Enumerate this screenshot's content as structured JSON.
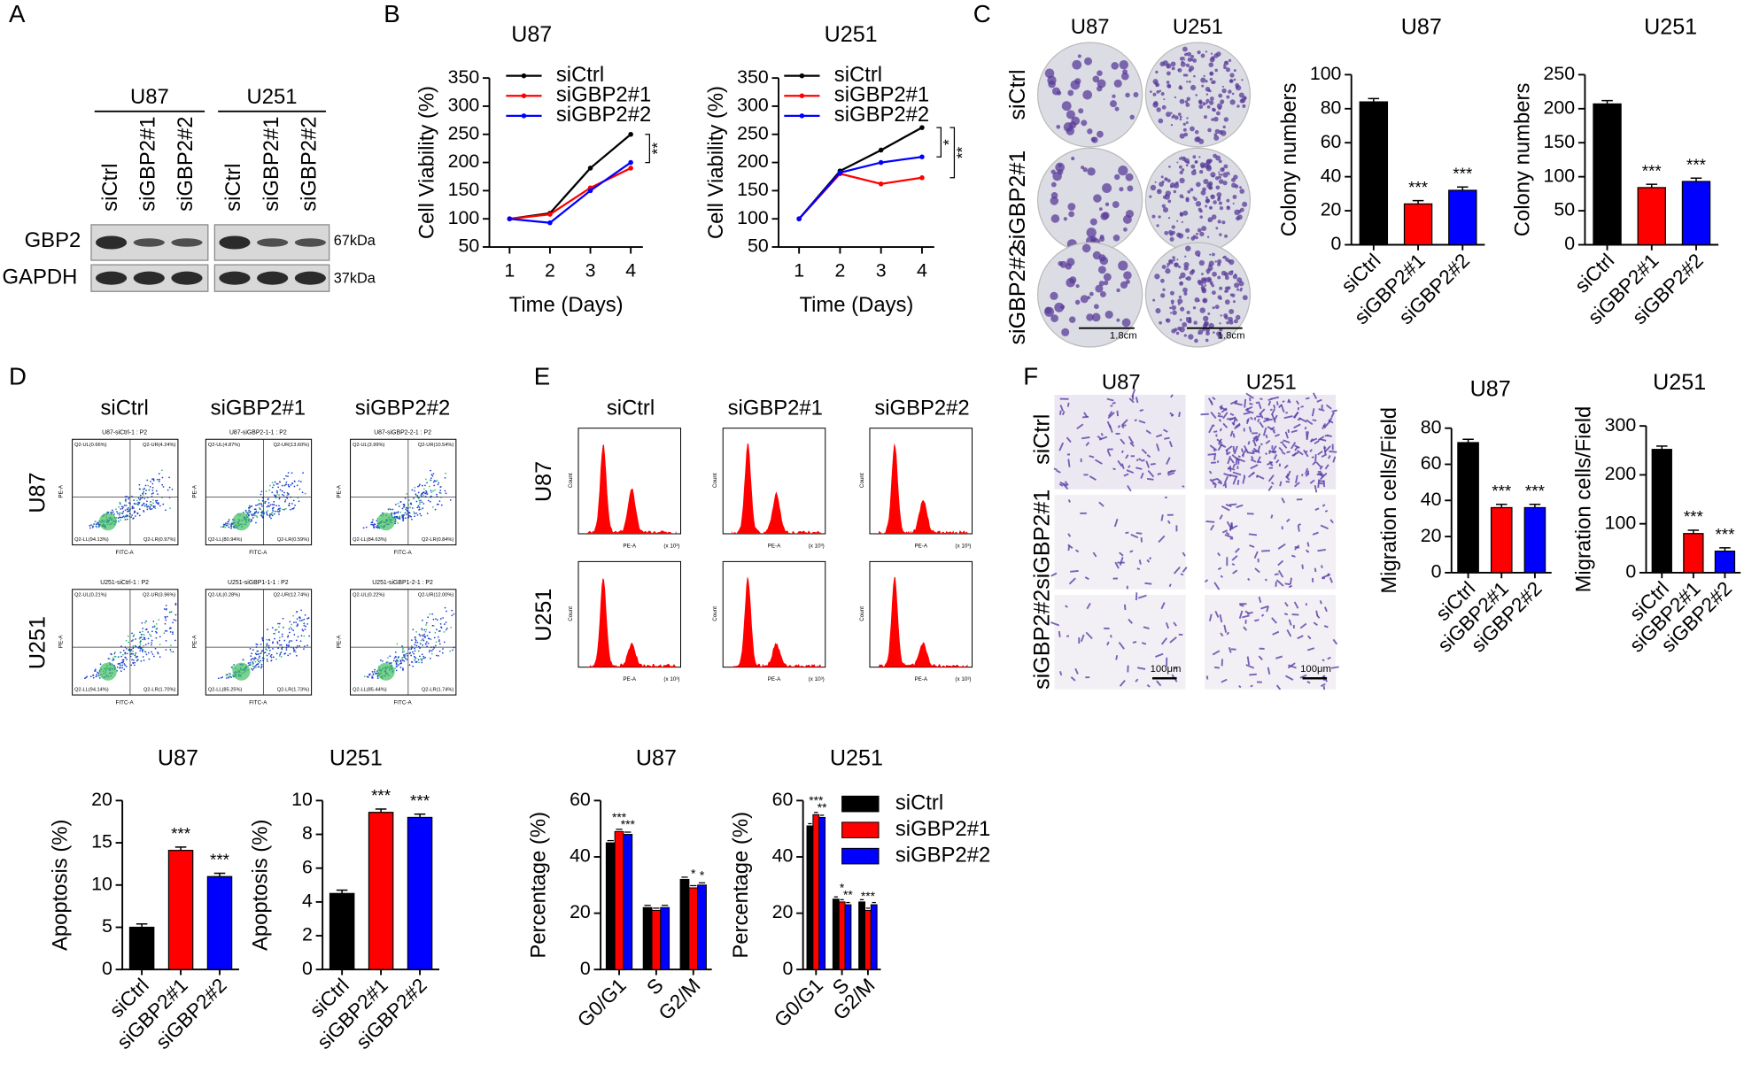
{
  "panel_labels": [
    "A",
    "B",
    "C",
    "D",
    "E",
    "F"
  ],
  "western_blot": {
    "cell_lines": [
      "U87",
      "U251"
    ],
    "lanes": [
      [
        "siCtrl",
        "siGBP2#1",
        "siGBP2#2"
      ],
      [
        "siCtrl",
        "siGBP2#1",
        "siGBP2#2"
      ]
    ],
    "proteins": [
      "GBP2",
      "GAPDH"
    ],
    "sizes": [
      "67kDa",
      "37kDa"
    ]
  },
  "colony_images": {
    "columns": [
      "U87",
      "U251"
    ],
    "rows": [
      "siCtrl",
      "siGBP2#1",
      "siGBP2#2"
    ],
    "scale_bars": [
      "1.8cm",
      "1.8cm"
    ]
  },
  "flow_cytometry": {
    "columns": [
      "siCtrl",
      "siGBP2#1",
      "siGBP2#2"
    ],
    "rows": [
      "U87",
      "U251"
    ],
    "x_axis": "FITC-A",
    "y_axis": "PE-A",
    "plots": [
      [
        {
          "title": "U87-siCtrl-1 : P2",
          "quadrants": [
            "Q2-UL(0.66%)",
            "Q2-UR(4.24%)",
            "Q2-LL(94.13%)",
            "Q2-LR(0.97%)"
          ]
        },
        {
          "title": "U87-siGBP2-1-1 : P2",
          "quadrants": [
            "Q2-UL(4.87%)",
            "Q2-UR(13.60%)",
            "Q2-LL(80.94%)",
            "Q2-LR(0.59%)"
          ]
        },
        {
          "title": "U87-siGBP2-2-1 : P2",
          "quadrants": [
            "Q2-UL(3.99%)",
            "Q2-UR(10.54%)",
            "Q2-LL(84.63%)",
            "Q2-LR(0.84%)"
          ]
        }
      ],
      [
        {
          "title": "U251-siCtrl-1 : P2",
          "quadrants": [
            "Q2-UL(0.21%)",
            "Q2-UR(3.96%)",
            "Q2-LL(94.14%)",
            "Q2-LR(1.70%)"
          ]
        },
        {
          "title": "U251-siGBP1-1-1 : P2",
          "quadrants": [
            "Q2-UL(0.28%)",
            "Q2-UR(12.74%)",
            "Q2-LL(85.25%)",
            "Q2-LR(1.73%)"
          ]
        },
        {
          "title": "U251-siGBP1-2-1 : P2",
          "quadrants": [
            "Q2-UL(0.22%)",
            "Q2-UR(12.00%)",
            "Q2-LL(85.44%)",
            "Q2-LR(1.74%)"
          ]
        }
      ]
    ]
  },
  "cell_cycle_images": {
    "columns": [
      "siCtrl",
      "siGBP2#1",
      "siGBP2#2"
    ],
    "rows": [
      "U87",
      "U251"
    ],
    "x_axis": "PE-A",
    "x_unit": "(x 10³)",
    "y_axis": "Count"
  },
  "migration_images": {
    "columns": [
      "U87",
      "U251"
    ],
    "rows": [
      "siCtrl",
      "siGBP2#1",
      "siGBP2#2"
    ],
    "scale_bars": [
      "100μm",
      "100μm"
    ]
  },
  "chart_data": [
    {
      "type": "line",
      "title": "U87",
      "x_label": "Time (Days)",
      "y_label": "Cell Viability (%)",
      "x": [
        1,
        2,
        3,
        4
      ],
      "xlim": [
        0.5,
        4.3
      ],
      "xticks": [
        1,
        2,
        3,
        4
      ],
      "ylim": [
        50,
        350
      ],
      "yticks": [
        50,
        100,
        150,
        200,
        250,
        300,
        350
      ],
      "legend": "upper left",
      "series": [
        {
          "name": "siCtrl",
          "color": "#000000",
          "values": [
            100,
            110,
            190,
            250
          ]
        },
        {
          "name": "siGBP2#1",
          "color": "#ff0000",
          "values": [
            100,
            108,
            155,
            190
          ]
        },
        {
          "name": "siGBP2#2",
          "color": "#0000ff",
          "values": [
            100,
            93,
            150,
            200
          ]
        }
      ],
      "annotations": [
        "**"
      ]
    },
    {
      "type": "line",
      "title": "U251",
      "x_label": "Time (Days)",
      "y_label": "Cell Viability (%)",
      "x": [
        1,
        2,
        3,
        4
      ],
      "xlim": [
        0.5,
        4.3
      ],
      "xticks": [
        1,
        2,
        3,
        4
      ],
      "ylim": [
        50,
        350
      ],
      "yticks": [
        50,
        100,
        150,
        200,
        250,
        300,
        350
      ],
      "legend": "upper left",
      "series": [
        {
          "name": "siCtrl",
          "color": "#000000",
          "values": [
            100,
            185,
            222,
            262
          ]
        },
        {
          "name": "siGBP2#1",
          "color": "#ff0000",
          "values": [
            100,
            180,
            162,
            173
          ]
        },
        {
          "name": "siGBP2#2",
          "color": "#0000ff",
          "values": [
            100,
            182,
            200,
            210
          ]
        }
      ],
      "annotations": [
        "*",
        "**"
      ]
    },
    {
      "type": "bar",
      "title": "U87",
      "y_label": "Colony numbers",
      "categories": [
        "siCtrl",
        "siGBP2#1",
        "siGBP2#2"
      ],
      "values": [
        84,
        24,
        32
      ],
      "colors": [
        "#000000",
        "#ff0000",
        "#0000ff"
      ],
      "ylim": [
        0,
        100
      ],
      "yticks": [
        0,
        20,
        40,
        60,
        80,
        100
      ],
      "annotations": [
        null,
        "***",
        "***"
      ]
    },
    {
      "type": "bar",
      "title": "U251",
      "y_label": "Colony numbers",
      "categories": [
        "siCtrl",
        "siGBP2#1",
        "siGBP2#2"
      ],
      "values": [
        207,
        84,
        93
      ],
      "colors": [
        "#000000",
        "#ff0000",
        "#0000ff"
      ],
      "ylim": [
        0,
        250
      ],
      "yticks": [
        0,
        50,
        100,
        150,
        200,
        250
      ],
      "annotations": [
        null,
        "***",
        "***"
      ]
    },
    {
      "type": "bar",
      "title": "U87",
      "y_label": "Apoptosis (%)",
      "categories": [
        "siCtrl",
        "siGBP2#1",
        "siGBP2#2"
      ],
      "values": [
        5,
        14.1,
        11
      ],
      "colors": [
        "#000000",
        "#ff0000",
        "#0000ff"
      ],
      "ylim": [
        0,
        20
      ],
      "yticks": [
        0,
        5,
        10,
        15,
        20
      ],
      "annotations": [
        null,
        "***",
        "***"
      ]
    },
    {
      "type": "bar",
      "title": "U251",
      "y_label": "Apoptosis (%)",
      "categories": [
        "siCtrl",
        "siGBP2#1",
        "siGBP2#2"
      ],
      "values": [
        4.5,
        9.3,
        9.0
      ],
      "colors": [
        "#000000",
        "#ff0000",
        "#0000ff"
      ],
      "ylim": [
        0,
        10
      ],
      "yticks": [
        0,
        2,
        4,
        6,
        8,
        10
      ],
      "annotations": [
        null,
        "***",
        "***"
      ]
    },
    {
      "type": "grouped_bar",
      "title": "U87",
      "y_label": "Percentage (%)",
      "categories": [
        "G0/G1",
        "S",
        "G2/M"
      ],
      "ylim": [
        0,
        60
      ],
      "yticks": [
        0,
        20,
        40,
        60
      ],
      "series": [
        {
          "name": "siCtrl",
          "color": "#000000",
          "values": [
            45,
            22,
            32
          ],
          "annotations": [
            null,
            null,
            null
          ]
        },
        {
          "name": "siGBP2#1",
          "color": "#ff0000",
          "values": [
            49,
            21,
            29
          ],
          "annotations": [
            "***",
            null,
            "*"
          ]
        },
        {
          "name": "siGBP2#2",
          "color": "#0000ff",
          "values": [
            48,
            22,
            30
          ],
          "annotations": [
            "***",
            null,
            "*"
          ]
        }
      ]
    },
    {
      "type": "grouped_bar",
      "title": "U251",
      "y_label": "Percentage (%)",
      "categories": [
        "G0/G1",
        "S",
        "G2/M"
      ],
      "ylim": [
        0,
        60
      ],
      "yticks": [
        0,
        20,
        40,
        60
      ],
      "legend": "right",
      "series": [
        {
          "name": "siCtrl",
          "color": "#000000",
          "values": [
            51,
            25,
            24
          ],
          "annotations": [
            null,
            null,
            null
          ]
        },
        {
          "name": "siGBP2#1",
          "color": "#ff0000",
          "values": [
            55,
            24,
            21
          ],
          "annotations": [
            "***",
            "*",
            "***"
          ]
        },
        {
          "name": "siGBP2#2",
          "color": "#0000ff",
          "values": [
            54,
            23,
            23
          ],
          "annotations": [
            "**",
            "**",
            null
          ]
        }
      ]
    },
    {
      "type": "bar",
      "title": "U87",
      "y_label": "Migration cells/Field",
      "categories": [
        "siCtrl",
        "siGBP2#1",
        "siGBP2#2"
      ],
      "values": [
        72,
        36,
        36
      ],
      "colors": [
        "#000000",
        "#ff0000",
        "#0000ff"
      ],
      "ylim": [
        0,
        80
      ],
      "yticks": [
        0,
        20,
        40,
        60,
        80
      ],
      "annotations": [
        null,
        "***",
        "***"
      ]
    },
    {
      "type": "bar",
      "title": "U251",
      "y_label": "Migration cells/Field",
      "categories": [
        "siCtrl",
        "siGBP2#1",
        "siGBP2#2"
      ],
      "values": [
        252,
        80,
        44
      ],
      "colors": [
        "#000000",
        "#ff0000",
        "#0000ff"
      ],
      "ylim": [
        0,
        300
      ],
      "yticks": [
        0,
        100,
        200,
        300
      ],
      "annotations": [
        null,
        "***",
        "***"
      ]
    }
  ]
}
